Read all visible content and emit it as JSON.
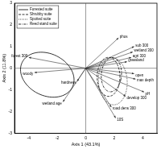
{
  "chart_data": {
    "type": "biplot",
    "x_label": "Axis 1 (43.1%)",
    "y_label": "Axis 2 (11.8%)",
    "xlim": [
      -5,
      5
    ],
    "xticks": [
      -4,
      -2,
      0,
      2,
      4
    ],
    "ylim": [
      -3,
      3
    ],
    "yticks": [
      -3,
      -2,
      -1,
      0,
      1,
      2,
      3
    ],
    "grid": false,
    "legend": "upper left",
    "series": [
      {
        "name": "Forested suite",
        "line_style": "solid",
        "ellipse": {
          "center": [
            -2.7,
            -0.3
          ],
          "radii": [
            1.9,
            1.0
          ],
          "angle": -10
        }
      },
      {
        "name": "Shrubby suite",
        "line_style": "dashed",
        "ellipse": {
          "center": [
            1.6,
            -0.4
          ],
          "radii": [
            0.8,
            0.9
          ],
          "angle": 0
        }
      },
      {
        "name": "Spotted suite",
        "line_style": "dotted",
        "ellipse": {
          "center": [
            1.9,
            -0.6
          ],
          "radii": [
            1.0,
            1.1
          ],
          "angle": 20
        }
      },
      {
        "name": "Reed stand suite",
        "line_style": "dashdot",
        "ellipse": {
          "center": [
            1.8,
            -0.3
          ],
          "radii": [
            0.7,
            0.8
          ],
          "angle": -20
        }
      }
    ],
    "vectors": [
      {
        "name": "forest 300",
        "x": -4.0,
        "y": 0.5
      },
      {
        "name": "woody",
        "x": -3.6,
        "y": -0.2
      },
      {
        "name": "hardness",
        "x": -0.6,
        "y": -0.6
      },
      {
        "name": "wetland age",
        "x": -1.6,
        "y": -1.55
      },
      {
        "name": "phos",
        "x": 2.3,
        "y": 1.4
      },
      {
        "name": "sub 300",
        "x": 3.4,
        "y": 1.0
      },
      {
        "name": "wetland 300",
        "x": 3.3,
        "y": 0.75
      },
      {
        "name": "agri 300",
        "x": 3.2,
        "y": 0.5
      },
      {
        "name": "grassland",
        "x": 2.9,
        "y": 0.3
      },
      {
        "name": "open",
        "x": 3.4,
        "y": -0.25
      },
      {
        "name": "max depth",
        "x": 3.5,
        "y": -0.5
      },
      {
        "name": "pH",
        "x": 4.1,
        "y": -1.1
      },
      {
        "name": "develop 300",
        "x": 2.8,
        "y": -1.3
      },
      {
        "name": "road dens 300",
        "x": 1.8,
        "y": -1.8
      },
      {
        "name": "10S",
        "x": 2.1,
        "y": -2.3
      }
    ]
  }
}
